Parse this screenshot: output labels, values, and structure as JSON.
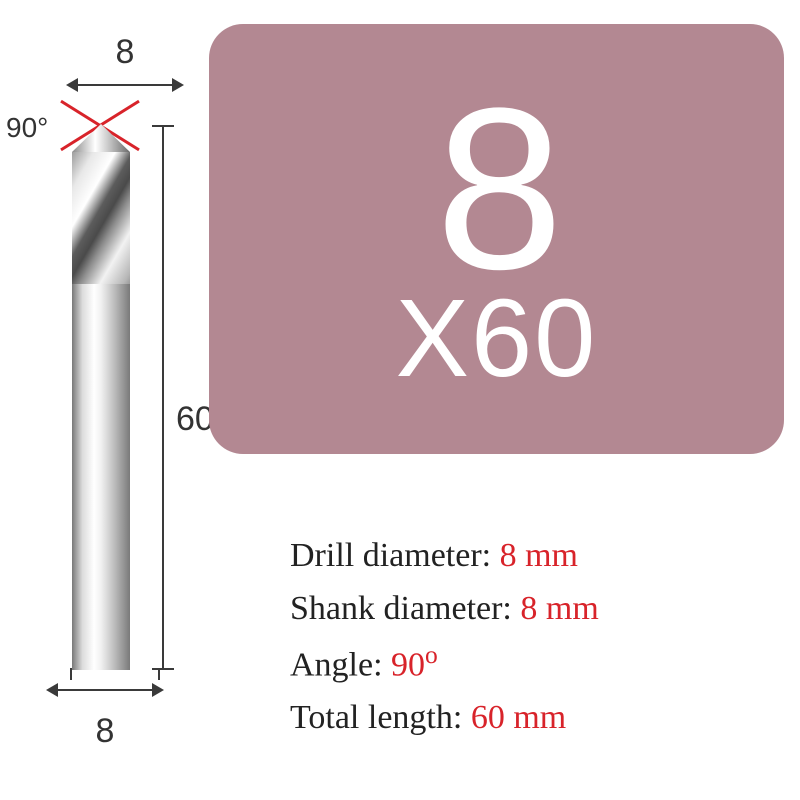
{
  "colors": {
    "card_bg": "#b38892",
    "card_text": "#ffffff",
    "value_text": "#d8232a",
    "label_text": "#222222",
    "dim_text": "#333333",
    "red_x": "#d8232a"
  },
  "diagram": {
    "top_width": "8",
    "bottom_width": "8",
    "length": "60",
    "angle": "90°"
  },
  "card": {
    "big": "8",
    "sub": "X60"
  },
  "specs": [
    {
      "label": "Drill diameter: ",
      "value": "8 mm",
      "has_degree": false
    },
    {
      "label": "Shank diameter: ",
      "value": "8 mm",
      "has_degree": false
    },
    {
      "label": "Angle: ",
      "value": "90",
      "has_degree": true
    },
    {
      "label": "Total length: ",
      "value": "60 mm",
      "has_degree": false
    }
  ]
}
